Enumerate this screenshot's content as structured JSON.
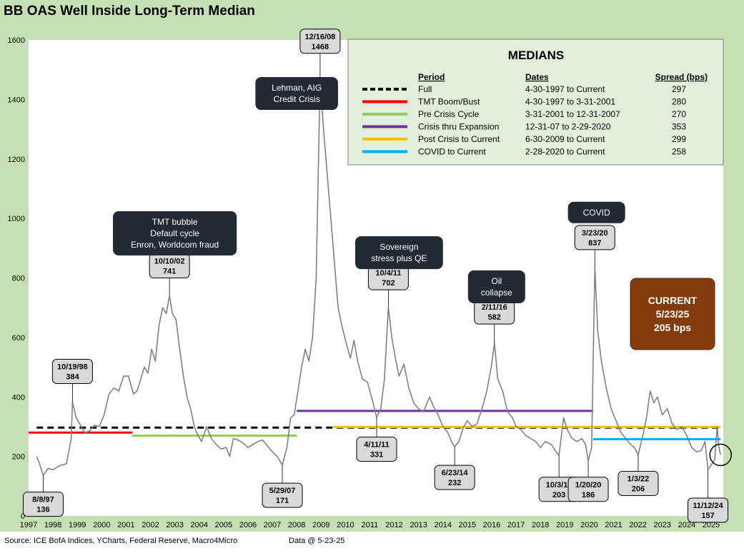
{
  "title": "BB OAS Well Inside Long-Term Median",
  "footer": {
    "source": "Source: ICE BofA Indices, YCharts, Federal Reserve, Macro4Micro",
    "data_date": "Data @ 5-23-25"
  },
  "colors": {
    "background": "#c5e0b3",
    "plot_background": "#ffffff",
    "series_line": "#808080",
    "callout_fill": "#d9d9d9",
    "dark_box": "#222a35",
    "current_box": "#843c0c",
    "legend_fill": "#e2efda"
  },
  "legend": {
    "title": "MEDIANS",
    "headers": {
      "period": "Period",
      "dates": "Dates",
      "spread": "Spread (bps)"
    },
    "rows": [
      {
        "period": "Full",
        "dates": "4-30-1997 to Current",
        "spread": "297",
        "color": "#000000",
        "style": "dashed"
      },
      {
        "period": "TMT Boom/Bust",
        "dates": "4-30-1997 to 3-31-2001",
        "spread": "280",
        "color": "#ff0000",
        "style": "solid"
      },
      {
        "period": "Pre Crisis Cycle",
        "dates": "3-31-2001 to 12-31-2007",
        "spread": "270",
        "color": "#92d050",
        "style": "solid"
      },
      {
        "period": "Crisis thru Expansion",
        "dates": "12-31-07 to 2-29-2020",
        "spread": "353",
        "color": "#7030a0",
        "style": "solid"
      },
      {
        "period": "Post Crisis to Current",
        "dates": "6-30-2009 to Current",
        "spread": "299",
        "color": "#ffc000",
        "style": "solid"
      },
      {
        "period": "COVID to Current",
        "dates": "2-28-2020 to Current",
        "spread": "258",
        "color": "#00b0f0",
        "style": "solid"
      }
    ]
  },
  "chart_data": {
    "type": "line",
    "xlim": [
      1997.0,
      2025.5
    ],
    "ylim": [
      0,
      1600
    ],
    "x_ticks": [
      "1997",
      "1998",
      "1999",
      "2000",
      "2001",
      "2002",
      "2003",
      "2004",
      "2005",
      "2006",
      "2007",
      "2008",
      "2009",
      "2010",
      "2011",
      "2012",
      "2013",
      "2014",
      "2015",
      "2016",
      "2017",
      "2018",
      "2019",
      "2020",
      "2021",
      "2022",
      "2023",
      "2024",
      "2025"
    ],
    "y_ticks": [
      0,
      200,
      400,
      600,
      800,
      1000,
      1200,
      1400,
      1600
    ],
    "series": [
      {
        "values": [
          [
            1997.33,
            200
          ],
          [
            1997.45,
            175
          ],
          [
            1997.6,
            136
          ],
          [
            1997.8,
            160
          ],
          [
            1998.0,
            155
          ],
          [
            1998.3,
            170
          ],
          [
            1998.55,
            175
          ],
          [
            1998.75,
            260
          ],
          [
            1998.8,
            384
          ],
          [
            1998.95,
            330
          ],
          [
            1999.1,
            310
          ],
          [
            1999.3,
            280
          ],
          [
            1999.5,
            285
          ],
          [
            1999.7,
            305
          ],
          [
            1999.9,
            300
          ],
          [
            2000.1,
            340
          ],
          [
            2000.3,
            410
          ],
          [
            2000.5,
            430
          ],
          [
            2000.7,
            420
          ],
          [
            2000.9,
            470
          ],
          [
            2001.1,
            470
          ],
          [
            2001.3,
            410
          ],
          [
            2001.45,
            420
          ],
          [
            2001.6,
            460
          ],
          [
            2001.75,
            500
          ],
          [
            2001.9,
            480
          ],
          [
            2002.05,
            560
          ],
          [
            2002.2,
            520
          ],
          [
            2002.35,
            640
          ],
          [
            2002.5,
            700
          ],
          [
            2002.65,
            680
          ],
          [
            2002.78,
            741
          ],
          [
            2002.9,
            680
          ],
          [
            2003.05,
            660
          ],
          [
            2003.2,
            560
          ],
          [
            2003.35,
            470
          ],
          [
            2003.5,
            400
          ],
          [
            2003.65,
            360
          ],
          [
            2003.8,
            300
          ],
          [
            2003.95,
            270
          ],
          [
            2004.1,
            250
          ],
          [
            2004.3,
            300
          ],
          [
            2004.5,
            260
          ],
          [
            2004.7,
            240
          ],
          [
            2004.9,
            225
          ],
          [
            2005.1,
            230
          ],
          [
            2005.25,
            200
          ],
          [
            2005.4,
            260
          ],
          [
            2005.6,
            255
          ],
          [
            2005.8,
            245
          ],
          [
            2006.0,
            230
          ],
          [
            2006.2,
            240
          ],
          [
            2006.4,
            250
          ],
          [
            2006.6,
            255
          ],
          [
            2006.8,
            235
          ],
          [
            2007.0,
            215
          ],
          [
            2007.2,
            200
          ],
          [
            2007.41,
            171
          ],
          [
            2007.6,
            230
          ],
          [
            2007.75,
            330
          ],
          [
            2007.9,
            340
          ],
          [
            2008.05,
            420
          ],
          [
            2008.2,
            500
          ],
          [
            2008.35,
            560
          ],
          [
            2008.5,
            520
          ],
          [
            2008.65,
            600
          ],
          [
            2008.8,
            800
          ],
          [
            2008.96,
            1468
          ],
          [
            2009.1,
            1300
          ],
          [
            2009.25,
            1150
          ],
          [
            2009.4,
            1000
          ],
          [
            2009.55,
            850
          ],
          [
            2009.7,
            700
          ],
          [
            2009.85,
            640
          ],
          [
            2010.0,
            590
          ],
          [
            2010.2,
            530
          ],
          [
            2010.35,
            590
          ],
          [
            2010.5,
            520
          ],
          [
            2010.7,
            460
          ],
          [
            2010.9,
            450
          ],
          [
            2011.1,
            390
          ],
          [
            2011.28,
            331
          ],
          [
            2011.45,
            360
          ],
          [
            2011.6,
            460
          ],
          [
            2011.76,
            702
          ],
          [
            2011.9,
            600
          ],
          [
            2012.05,
            530
          ],
          [
            2012.2,
            470
          ],
          [
            2012.4,
            510
          ],
          [
            2012.6,
            430
          ],
          [
            2012.8,
            380
          ],
          [
            2013.0,
            360
          ],
          [
            2013.2,
            350
          ],
          [
            2013.45,
            400
          ],
          [
            2013.6,
            370
          ],
          [
            2013.8,
            340
          ],
          [
            2014.0,
            300
          ],
          [
            2014.2,
            280
          ],
          [
            2014.35,
            250
          ],
          [
            2014.48,
            232
          ],
          [
            2014.65,
            250
          ],
          [
            2014.85,
            300
          ],
          [
            2015.0,
            320
          ],
          [
            2015.2,
            300
          ],
          [
            2015.4,
            310
          ],
          [
            2015.6,
            360
          ],
          [
            2015.8,
            420
          ],
          [
            2016.0,
            510
          ],
          [
            2016.11,
            582
          ],
          [
            2016.25,
            460
          ],
          [
            2016.45,
            420
          ],
          [
            2016.65,
            350
          ],
          [
            2016.85,
            330
          ],
          [
            2017.0,
            300
          ],
          [
            2017.2,
            290
          ],
          [
            2017.4,
            270
          ],
          [
            2017.6,
            260
          ],
          [
            2017.8,
            250
          ],
          [
            2018.0,
            230
          ],
          [
            2018.2,
            250
          ],
          [
            2018.45,
            240
          ],
          [
            2018.6,
            220
          ],
          [
            2018.76,
            203
          ],
          [
            2018.95,
            330
          ],
          [
            2019.1,
            290
          ],
          [
            2019.3,
            260
          ],
          [
            2019.5,
            250
          ],
          [
            2019.7,
            260
          ],
          [
            2019.85,
            240
          ],
          [
            2019.96,
            186
          ],
          [
            2020.1,
            230
          ],
          [
            2020.23,
            837
          ],
          [
            2020.35,
            620
          ],
          [
            2020.5,
            520
          ],
          [
            2020.7,
            430
          ],
          [
            2020.9,
            360
          ],
          [
            2021.1,
            320
          ],
          [
            2021.3,
            280
          ],
          [
            2021.5,
            260
          ],
          [
            2021.7,
            240
          ],
          [
            2021.85,
            230
          ],
          [
            2022.01,
            206
          ],
          [
            2022.2,
            270
          ],
          [
            2022.35,
            330
          ],
          [
            2022.5,
            420
          ],
          [
            2022.65,
            380
          ],
          [
            2022.8,
            400
          ],
          [
            2023.0,
            340
          ],
          [
            2023.2,
            360
          ],
          [
            2023.4,
            310
          ],
          [
            2023.6,
            290
          ],
          [
            2023.8,
            300
          ],
          [
            2024.0,
            270
          ],
          [
            2024.2,
            230
          ],
          [
            2024.4,
            215
          ],
          [
            2024.6,
            220
          ],
          [
            2024.75,
            250
          ],
          [
            2024.87,
            157
          ],
          [
            2025.0,
            170
          ],
          [
            2025.15,
            190
          ],
          [
            2025.25,
            300
          ],
          [
            2025.32,
            230
          ],
          [
            2025.39,
            205
          ]
        ]
      }
    ],
    "medians": [
      {
        "x": [
          1997.33,
          2025.39
        ],
        "y": 297,
        "color": "#000000",
        "style": "dashed"
      },
      {
        "x": [
          1997.0,
          2001.25
        ],
        "y": 280,
        "color": "#ff0000",
        "style": "solid"
      },
      {
        "x": [
          2001.25,
          2008.0
        ],
        "y": 270,
        "color": "#92d050",
        "style": "solid"
      },
      {
        "x": [
          2008.0,
          2020.16
        ],
        "y": 353,
        "color": "#7030a0",
        "style": "solid"
      },
      {
        "x": [
          2009.5,
          2025.39
        ],
        "y": 299,
        "color": "#ffc000",
        "style": "solid"
      },
      {
        "x": [
          2020.16,
          2025.39
        ],
        "y": 258,
        "color": "#00b0f0",
        "style": "solid"
      }
    ],
    "callouts": [
      {
        "date": "8/8/97",
        "value": "136",
        "x": 1997.6,
        "y": 136,
        "box_x": 1997.6,
        "box_y": 80,
        "below": true
      },
      {
        "date": "10/19/98",
        "value": "384",
        "x": 1998.8,
        "y": 384,
        "box_x": 1998.8,
        "box_y": 445,
        "below": false
      },
      {
        "date": "10/10/02",
        "value": "741",
        "x": 2002.78,
        "y": 741,
        "box_x": 2002.78,
        "box_y": 800,
        "below": false
      },
      {
        "date": "5/29/07",
        "value": "171",
        "x": 2007.41,
        "y": 171,
        "box_x": 2007.41,
        "box_y": 110,
        "below": true
      },
      {
        "date": "12/16/08",
        "value": "1468",
        "x": 2008.96,
        "y": 1468,
        "box_x": 2008.96,
        "box_y": 1555,
        "below": false
      },
      {
        "date": "4/11/11",
        "value": "331",
        "x": 2011.28,
        "y": 331,
        "box_x": 2011.28,
        "box_y": 265,
        "below": true
      },
      {
        "date": "10/4/11",
        "value": "702",
        "x": 2011.76,
        "y": 702,
        "box_x": 2011.76,
        "box_y": 760,
        "below": false
      },
      {
        "date": "6/23/14",
        "value": "232",
        "x": 2014.48,
        "y": 232,
        "box_x": 2014.48,
        "box_y": 170,
        "below": true
      },
      {
        "date": "2/11/16",
        "value": "582",
        "x": 2016.11,
        "y": 582,
        "box_x": 2016.11,
        "box_y": 645,
        "below": false
      },
      {
        "date": "10/3/18",
        "value": "203",
        "x": 2018.76,
        "y": 203,
        "box_x": 2018.76,
        "box_y": 130,
        "below": true
      },
      {
        "date": "1/20/20",
        "value": "186",
        "x": 2019.96,
        "y": 186,
        "box_x": 2019.96,
        "box_y": 130,
        "below": true
      },
      {
        "date": "3/23/20",
        "value": "837",
        "x": 2020.23,
        "y": 837,
        "box_x": 2020.23,
        "box_y": 895,
        "below": false
      },
      {
        "date": "1/3/22",
        "value": "206",
        "x": 2022.01,
        "y": 206,
        "box_x": 2022.01,
        "box_y": 150,
        "below": true
      },
      {
        "date": "11/12/24",
        "value": "157",
        "x": 2024.87,
        "y": 157,
        "box_x": 2024.87,
        "box_y": 60,
        "below": true
      }
    ],
    "annotations": [
      {
        "lines": [
          "Lehman, AIG",
          "Credit Crisis"
        ],
        "x": 2008.0,
        "y": 1420
      },
      {
        "lines": [
          "TMT bubble",
          "Default cycle",
          "Enron, Worldcom fraud"
        ],
        "x": 2003.0,
        "y": 950
      },
      {
        "lines": [
          "Sovereign",
          "stress plus QE"
        ],
        "x": 2012.2,
        "y": 885
      },
      {
        "lines": [
          "Oil",
          "collapse"
        ],
        "x": 2016.2,
        "y": 770
      },
      {
        "lines": [
          "COVID"
        ],
        "x": 2020.3,
        "y": 1020
      }
    ],
    "current": {
      "lines": [
        "CURRENT",
        "5/23/25",
        "205 bps"
      ],
      "x": 2025.39,
      "y": 205
    }
  }
}
